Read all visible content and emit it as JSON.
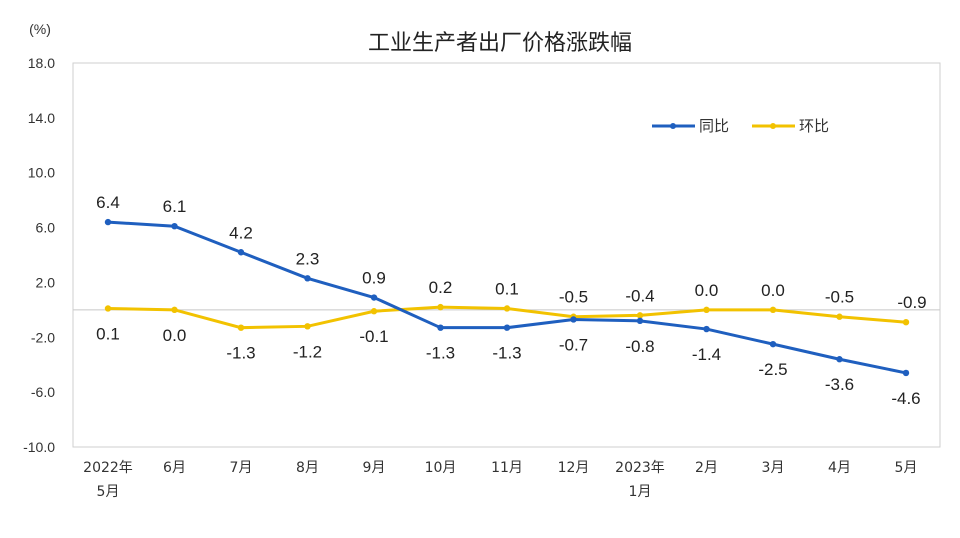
{
  "chart_data": {
    "type": "line",
    "title": "工业生产者出厂价格涨跌幅",
    "ylabel": "(%)",
    "xlabel": "",
    "ylim": [
      -10,
      18
    ],
    "yticks": [
      "18.0",
      "14.0",
      "10.0",
      "6.0",
      "2.0",
      "-2.0",
      "-6.0",
      "-10.0"
    ],
    "categories": [
      [
        "2022年",
        "5月"
      ],
      [
        "6月"
      ],
      [
        "7月"
      ],
      [
        "8月"
      ],
      [
        "9月"
      ],
      [
        "10月"
      ],
      [
        "11月"
      ],
      [
        "12月"
      ],
      [
        "2023年",
        "1月"
      ],
      [
        "2月"
      ],
      [
        "3月"
      ],
      [
        "4月"
      ],
      [
        "5月"
      ]
    ],
    "legend_position": "top-right",
    "grid": false,
    "series": [
      {
        "name": "同比",
        "color": "#1f5fbf",
        "values": [
          6.4,
          6.1,
          4.2,
          2.3,
          0.9,
          -1.3,
          -1.3,
          -0.7,
          -0.8,
          -1.4,
          -2.5,
          -3.6,
          -4.6
        ],
        "labels": [
          "6.4",
          "6.1",
          "4.2",
          "2.3",
          "0.9",
          "-1.3",
          "-1.3",
          "-0.7",
          "-0.8",
          "-1.4",
          "-2.5",
          "-3.6",
          "-4.6"
        ]
      },
      {
        "name": "环比",
        "color": "#f2c200",
        "values": [
          0.1,
          0.0,
          -1.3,
          -1.2,
          -0.1,
          0.2,
          0.1,
          -0.5,
          -0.4,
          0.0,
          0.0,
          -0.5,
          -0.9
        ],
        "labels": [
          "0.1",
          "0.0",
          "-1.3",
          "-1.2",
          "-0.1",
          "0.2",
          "0.1",
          "-0.5",
          "-0.4",
          "0.0",
          "0.0",
          "-0.5",
          "-0.9"
        ]
      }
    ]
  }
}
